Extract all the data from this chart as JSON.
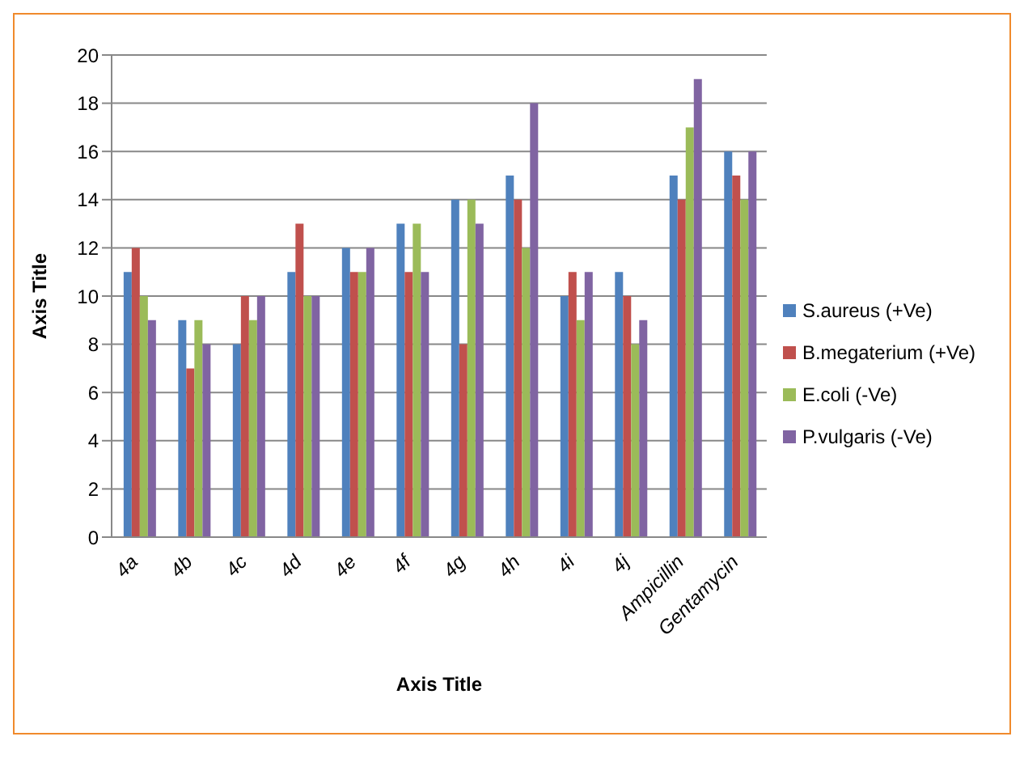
{
  "chart_data": {
    "type": "bar",
    "xlabel": "Axis Title",
    "ylabel": "Axis Title",
    "categories": [
      "4a",
      "4b",
      "4c",
      "4d",
      "4e",
      "4f",
      "4g",
      "4h",
      "4i",
      "4j",
      "Ampicillin",
      "Gentamycin"
    ],
    "series": [
      {
        "name": "S.aureus (+Ve)",
        "color": "#4f81bd",
        "values": [
          11,
          9,
          8,
          11,
          12,
          13,
          14,
          15,
          10,
          11,
          15,
          16
        ]
      },
      {
        "name": "B.megaterium (+Ve)",
        "color": "#c0504d",
        "values": [
          12,
          7,
          10,
          13,
          11,
          11,
          8,
          14,
          11,
          10,
          14,
          15
        ]
      },
      {
        "name": "E.coli (-Ve)",
        "color": "#9bbb59",
        "values": [
          10,
          9,
          9,
          10,
          11,
          13,
          14,
          12,
          9,
          8,
          17,
          14
        ]
      },
      {
        "name": "P.vulgaris (-Ve)",
        "color": "#8064a2",
        "values": [
          9,
          8,
          10,
          10,
          12,
          11,
          13,
          18,
          11,
          9,
          19,
          16
        ]
      }
    ],
    "ylim": [
      0,
      20
    ],
    "yticks": [
      0,
      2,
      4,
      6,
      8,
      10,
      12,
      14,
      16,
      18,
      20
    ],
    "grid": "y",
    "legend": "right"
  }
}
